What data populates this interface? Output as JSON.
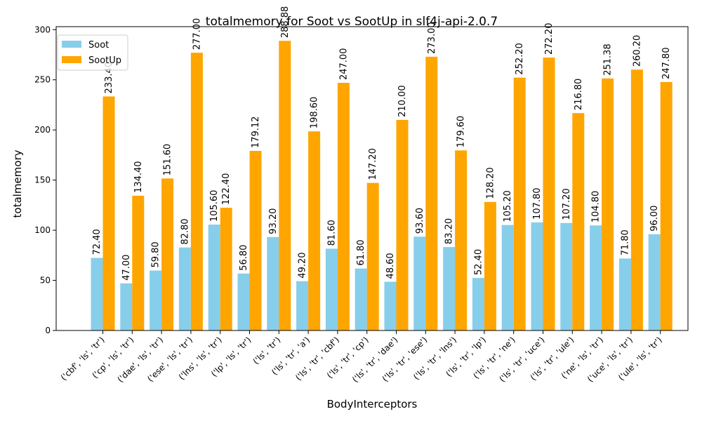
{
  "chart_data": {
    "type": "bar",
    "title": "totalmemory for Soot vs SootUp in slf4j-api-2.0.7",
    "xlabel": "BodyInterceptors",
    "ylabel": "totalmemory",
    "ylim": [
      0,
      303
    ],
    "yticks": [
      0,
      50,
      100,
      150,
      200,
      250,
      300
    ],
    "legend_position": "top-left",
    "categories": [
      "('cbf', 'ls', 'tr')",
      "('cp', 'ls', 'tr')",
      "('dae', 'ls', 'tr')",
      "('ese', 'ls', 'tr')",
      "('lns', 'ls', 'tr')",
      "('lp', 'ls', 'tr')",
      "('ls', 'tr')",
      "('ls', 'tr', 'a')",
      "('ls', 'tr', 'cbf')",
      "('ls', 'tr', 'cp')",
      "('ls', 'tr', 'dae')",
      "('ls', 'tr', 'ese')",
      "('ls', 'tr', 'lns')",
      "('ls', 'tr', 'lp')",
      "('ls', 'tr', 'ne')",
      "('ls', 'tr', 'uce')",
      "('ls', 'tr', 'ule')",
      "('ne', 'ls', 'tr')",
      "('uce', 'ls', 'tr')",
      "('ule', 'ls', 'tr')"
    ],
    "series": [
      {
        "name": "Soot",
        "color": "#87ceeb",
        "values": [
          72.4,
          47.0,
          59.8,
          82.8,
          105.6,
          56.8,
          93.2,
          49.2,
          81.6,
          61.8,
          48.6,
          93.6,
          83.2,
          52.4,
          105.2,
          107.8,
          107.2,
          104.8,
          71.8,
          96.0
        ],
        "labels": [
          "72.40",
          "47.00",
          "59.80",
          "82.80",
          "105.60",
          "56.80",
          "93.20",
          "49.20",
          "81.60",
          "61.80",
          "48.60",
          "93.60",
          "83.20",
          "52.40",
          "105.20",
          "107.80",
          "107.20",
          "104.80",
          "71.80",
          "96.00"
        ]
      },
      {
        "name": "SootUp",
        "color": "#ffa500",
        "values": [
          233.4,
          134.4,
          151.6,
          277.0,
          122.4,
          179.12,
          288.88,
          198.6,
          247.0,
          147.2,
          210.0,
          273.0,
          179.6,
          128.2,
          252.2,
          272.2,
          216.8,
          251.38,
          260.2,
          247.8
        ],
        "labels": [
          "233.40",
          "134.40",
          "151.60",
          "277.00",
          "122.40",
          "179.12",
          "288.88",
          "198.60",
          "247.00",
          "147.20",
          "210.00",
          "273.00",
          "179.60",
          "128.20",
          "252.20",
          "272.20",
          "216.80",
          "251.38",
          "260.20",
          "247.80"
        ]
      }
    ]
  }
}
